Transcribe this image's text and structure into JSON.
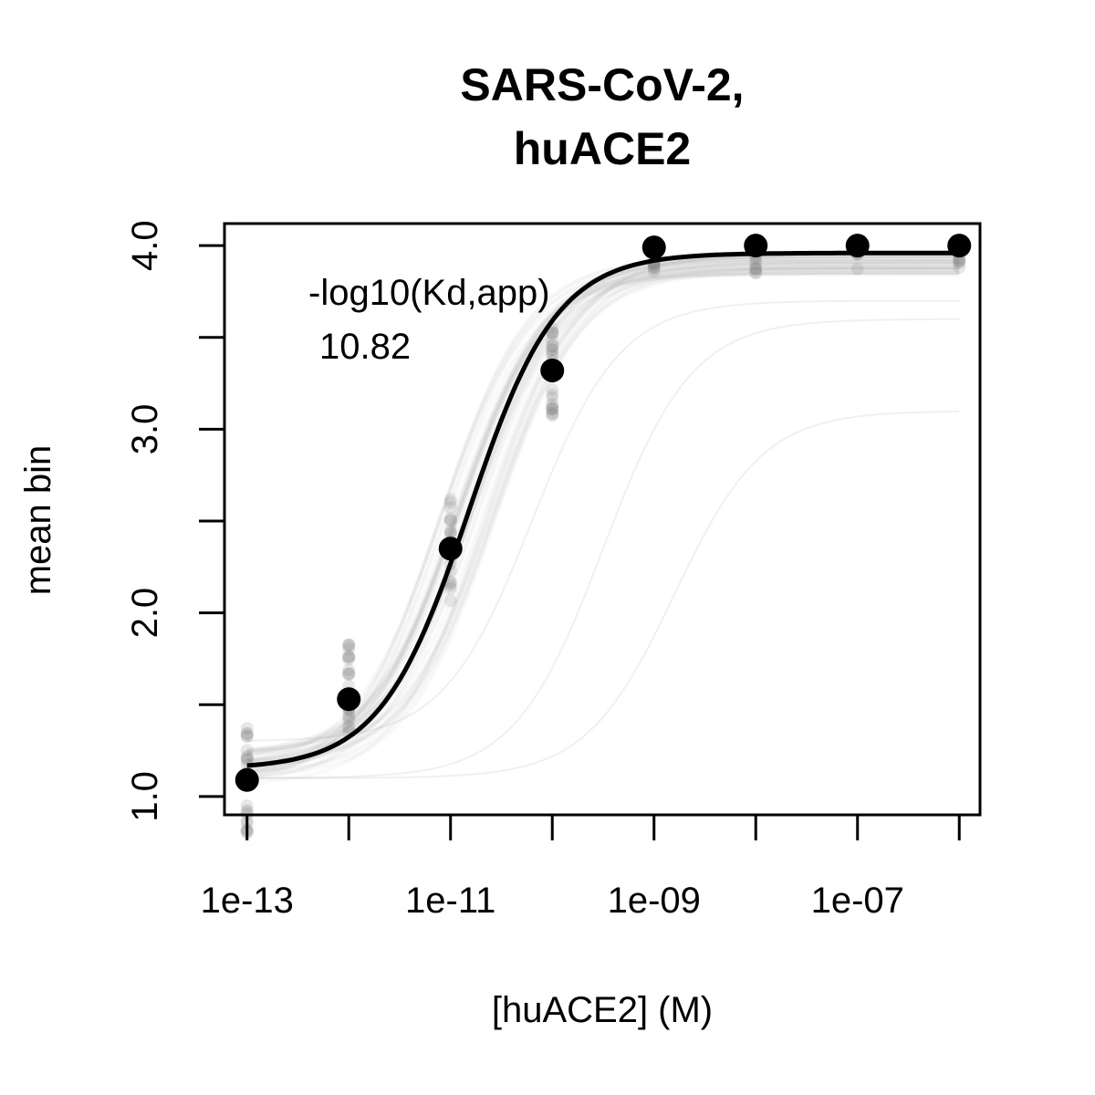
{
  "chart_data": {
    "type": "scatter",
    "title": [
      "SARS-CoV-2,",
      "huACE2"
    ],
    "xlabel": "[huACE2] (M)",
    "ylabel": "mean bin",
    "x_scale": "log",
    "xlim": [
      6e-14,
      1.6e-06
    ],
    "ylim": [
      0.9,
      4.12
    ],
    "x_ticks": [
      1e-13,
      1e-12,
      1e-11,
      1e-10,
      1e-09,
      1e-08,
      1e-07,
      1e-06
    ],
    "x_tick_labels": [
      "1e-13",
      "",
      "1e-11",
      "",
      "1e-09",
      "",
      "1e-07",
      ""
    ],
    "y_ticks": [
      1.0,
      1.5,
      2.0,
      2.5,
      3.0,
      3.5,
      4.0
    ],
    "y_tick_labels": [
      "1.0",
      "",
      "2.0",
      "",
      "3.0",
      "",
      "4.0"
    ],
    "grid": false,
    "annotation": {
      "label": "-log10(Kd,app)",
      "value": "10.82"
    },
    "series": [
      {
        "x": [
          1e-13,
          1e-12,
          1e-11,
          1e-10,
          1e-09,
          1e-08,
          1e-07,
          1e-06
        ],
        "y": [
          1.09,
          1.53,
          2.35,
          3.32,
          3.99,
          4.0,
          4.0,
          4.0
        ]
      }
    ],
    "fit": {
      "x_from": 1e-13,
      "x_to": 1e-06,
      "log10_kd": -10.82,
      "bottom": 1.15,
      "top": 3.96,
      "hill": 1.0
    },
    "colors": {
      "points": "#000000",
      "fit_line": "#000000",
      "background_replicates": "#808080"
    }
  }
}
